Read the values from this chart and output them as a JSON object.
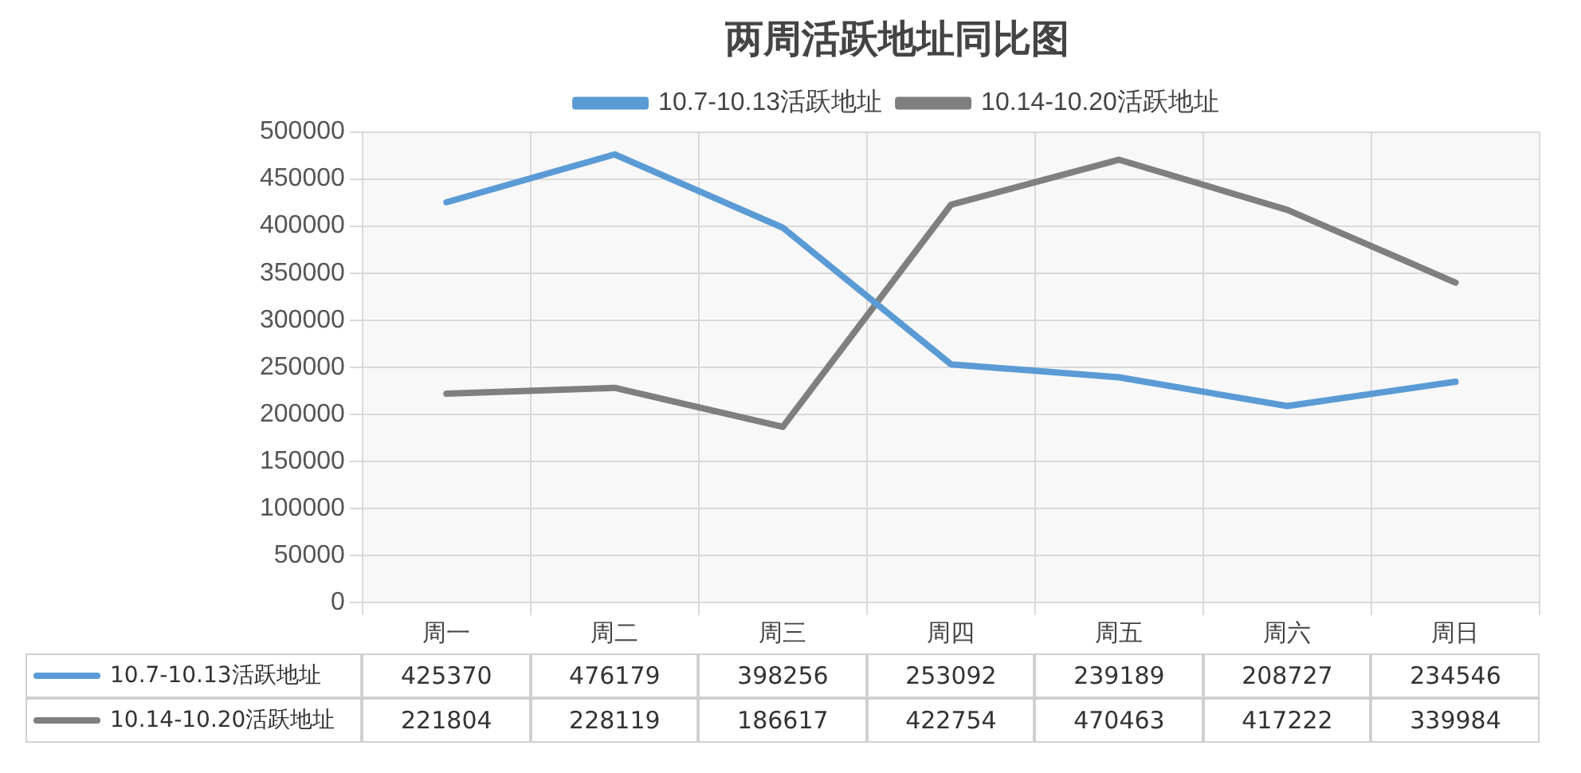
{
  "chart_data": {
    "type": "line",
    "title": "两周活跃地址同比图",
    "categories": [
      "周一",
      "周二",
      "周三",
      "周四",
      "周五",
      "周六",
      "周日"
    ],
    "series": [
      {
        "name": "10.7-10.13活跃地址",
        "color": "#5b9bd5",
        "values": [
          425370,
          476179,
          398256,
          253092,
          239189,
          208727,
          234546
        ]
      },
      {
        "name": "10.14-10.20活跃地址",
        "color": "#7f7f7f",
        "values": [
          221804,
          228119,
          186617,
          422754,
          470463,
          417222,
          339984
        ]
      }
    ],
    "ylim": [
      0,
      500000
    ],
    "yticks": [
      0,
      50000,
      100000,
      150000,
      200000,
      250000,
      300000,
      350000,
      400000,
      450000,
      500000
    ],
    "grid": true,
    "legend": "top",
    "data_labels": true,
    "marker": "none",
    "line_style": "solid"
  }
}
